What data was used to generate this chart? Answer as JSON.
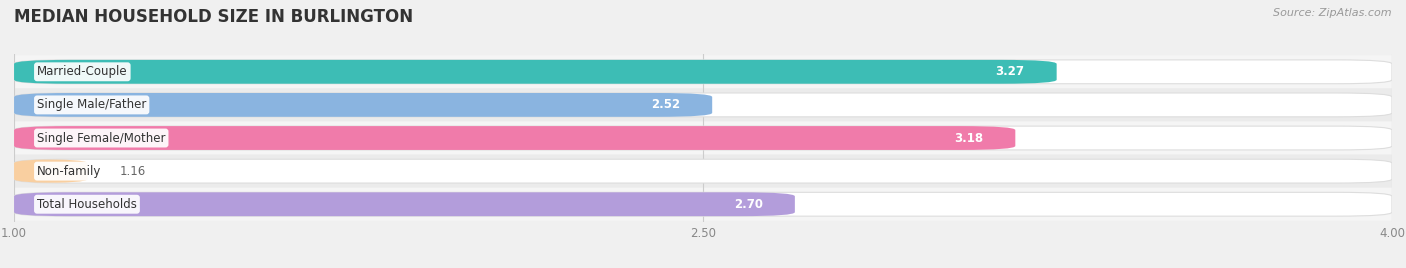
{
  "title": "MEDIAN HOUSEHOLD SIZE IN BURLINGTON",
  "source": "Source: ZipAtlas.com",
  "categories": [
    "Married-Couple",
    "Single Male/Father",
    "Single Female/Mother",
    "Non-family",
    "Total Households"
  ],
  "values": [
    3.27,
    2.52,
    3.18,
    1.16,
    2.7
  ],
  "bar_colors": [
    "#3dbdb5",
    "#8ab4e0",
    "#f07baa",
    "#f9cfa0",
    "#b39ddb"
  ],
  "xlim": [
    1.0,
    4.0
  ],
  "xticks": [
    1.0,
    2.5,
    4.0
  ],
  "xtick_labels": [
    "1.00",
    "2.50",
    "4.00"
  ],
  "bg_color": "#f0f0f0",
  "bar_bg_color": "#e8e8e8",
  "row_bg_even": "#f5f5f5",
  "row_bg_odd": "#ebebeb",
  "title_fontsize": 12,
  "label_fontsize": 8.5,
  "value_fontsize": 8.5,
  "value_inside_color": "#ffffff",
  "value_outside_color": "#666666",
  "value_inside_threshold": 2.5
}
